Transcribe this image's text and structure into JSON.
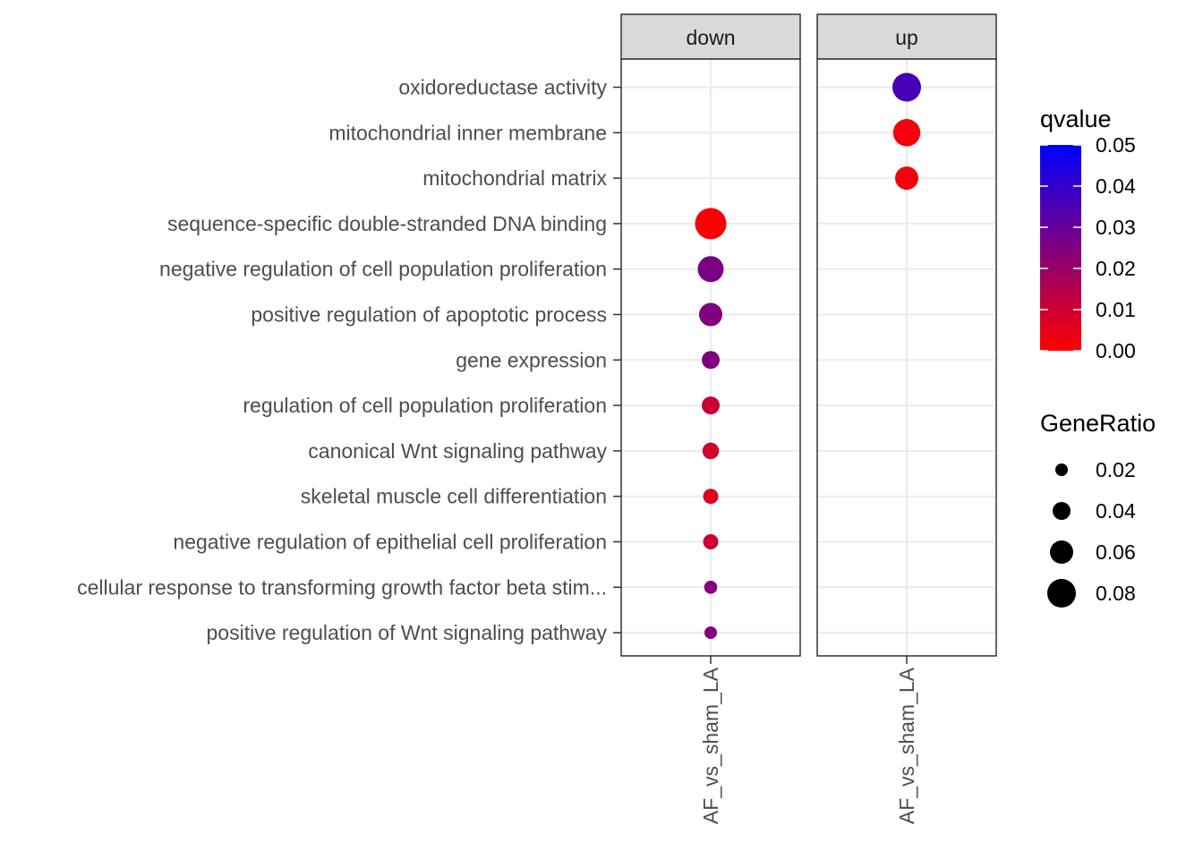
{
  "chart_data": {
    "type": "scatter",
    "panels": [
      "down",
      "up"
    ],
    "x_category": "AF_vs_sham_LA",
    "terms": [
      "oxidoreductase activity",
      "mitochondrial inner membrane",
      "mitochondrial matrix",
      "sequence-specific double-stranded DNA binding",
      "negative regulation of cell population proliferation",
      "positive regulation of apoptotic process",
      "gene expression",
      "regulation of cell population proliferation",
      "canonical Wnt signaling pathway",
      "skeletal muscle cell differentiation",
      "negative regulation of epithelial cell proliferation",
      "cellular response to transforming growth factor beta stim...",
      "positive regulation of Wnt signaling pathway"
    ],
    "points": [
      {
        "panel": "up",
        "term": "oxidoreductase activity",
        "gene_ratio": 0.08,
        "qvalue": 0.036
      },
      {
        "panel": "up",
        "term": "mitochondrial inner membrane",
        "gene_ratio": 0.075,
        "qvalue": 0.002
      },
      {
        "panel": "up",
        "term": "mitochondrial matrix",
        "gene_ratio": 0.06,
        "qvalue": 0.002
      },
      {
        "panel": "down",
        "term": "sequence-specific double-stranded DNA binding",
        "gene_ratio": 0.09,
        "qvalue": 0.001
      },
      {
        "panel": "down",
        "term": "negative regulation of cell population proliferation",
        "gene_ratio": 0.07,
        "qvalue": 0.026
      },
      {
        "panel": "down",
        "term": "positive regulation of apoptotic process",
        "gene_ratio": 0.06,
        "qvalue": 0.025
      },
      {
        "panel": "down",
        "term": "gene expression",
        "gene_ratio": 0.04,
        "qvalue": 0.025
      },
      {
        "panel": "down",
        "term": "regulation of cell population proliferation",
        "gene_ratio": 0.04,
        "qvalue": 0.011
      },
      {
        "panel": "down",
        "term": "canonical Wnt signaling pathway",
        "gene_ratio": 0.035,
        "qvalue": 0.009
      },
      {
        "panel": "down",
        "term": "skeletal muscle cell differentiation",
        "gene_ratio": 0.03,
        "qvalue": 0.006
      },
      {
        "panel": "down",
        "term": "negative regulation of epithelial cell proliferation",
        "gene_ratio": 0.03,
        "qvalue": 0.01
      },
      {
        "panel": "down",
        "term": "cellular response to transforming growth factor beta stim...",
        "gene_ratio": 0.022,
        "qvalue": 0.024
      },
      {
        "panel": "down",
        "term": "positive regulation of Wnt signaling pathway",
        "gene_ratio": 0.02,
        "qvalue": 0.024
      }
    ],
    "color_legend": {
      "title": "qvalue",
      "min": 0.0,
      "max": 0.05,
      "low_color": "#ff0000",
      "high_color": "#0000ff",
      "ticks": [
        0.0,
        0.01,
        0.02,
        0.03,
        0.04,
        0.05
      ],
      "tick_labels": [
        "0.00",
        "0.01",
        "0.02",
        "0.03",
        "0.04",
        "0.05"
      ]
    },
    "size_legend": {
      "title": "GeneRatio",
      "values": [
        0.02,
        0.04,
        0.06,
        0.08
      ],
      "labels": [
        "0.02",
        "0.04",
        "0.06",
        "0.08"
      ]
    },
    "grid": true,
    "legend_position": "right"
  }
}
